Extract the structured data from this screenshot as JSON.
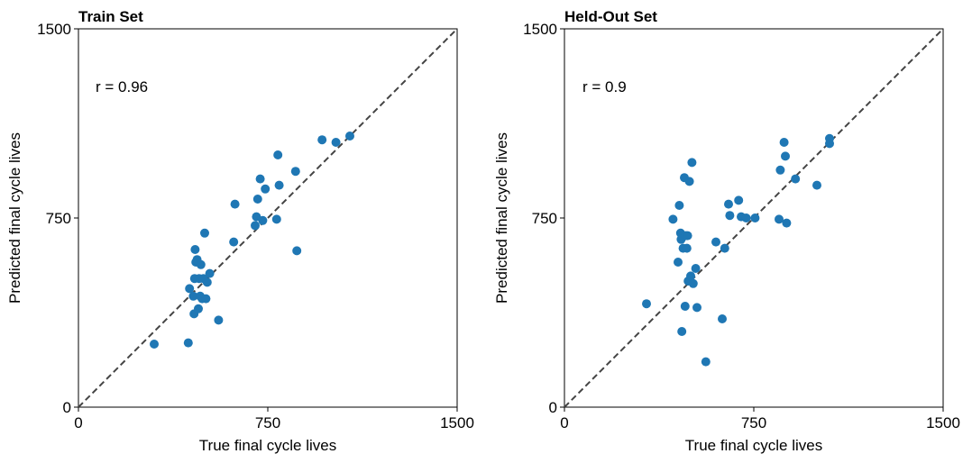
{
  "chart_data": [
    {
      "type": "scatter",
      "title": "Train Set",
      "xlabel": "True final cycle lives",
      "ylabel": "Predicted final cycle lives",
      "xlim": [
        0,
        1500
      ],
      "ylim": [
        0,
        1500
      ],
      "xticks": [
        "0",
        "750",
        "1500"
      ],
      "yticks": [
        "0",
        "750",
        "1500"
      ],
      "annotation": "r = 0.96",
      "reference_line": "y = x (dashed)",
      "grid": false,
      "marker_color": "#1f77b4",
      "x": [
        300,
        435,
        440,
        455,
        458,
        460,
        462,
        465,
        470,
        475,
        478,
        482,
        485,
        490,
        495,
        500,
        505,
        510,
        520,
        555,
        615,
        620,
        700,
        705,
        710,
        720,
        730,
        740,
        785,
        790,
        795,
        860,
        865,
        965,
        1020,
        1075
      ],
      "y": [
        250,
        255,
        470,
        440,
        370,
        510,
        625,
        575,
        585,
        390,
        510,
        440,
        565,
        430,
        510,
        690,
        430,
        495,
        530,
        345,
        655,
        805,
        720,
        755,
        825,
        905,
        740,
        865,
        745,
        1000,
        880,
        935,
        620,
        1060,
        1050,
        1075
      ]
    },
    {
      "type": "scatter",
      "title": "Held-Out Set",
      "xlabel": "True final cycle lives",
      "ylabel": "Predicted final cycle lives",
      "xlim": [
        0,
        1500
      ],
      "ylim": [
        0,
        1500
      ],
      "xticks": [
        "0",
        "750",
        "1500"
      ],
      "yticks": [
        "0",
        "750",
        "1500"
      ],
      "annotation": "r = 0.9",
      "reference_line": "y = x (dashed)",
      "grid": false,
      "marker_color": "#1f77b4",
      "x": [
        325,
        430,
        450,
        455,
        460,
        462,
        465,
        470,
        475,
        478,
        480,
        485,
        488,
        490,
        495,
        500,
        505,
        510,
        520,
        525,
        560,
        600,
        625,
        635,
        650,
        655,
        690,
        700,
        720,
        755,
        850,
        855,
        870,
        875,
        880,
        915,
        1000,
        1050,
        1050
      ],
      "y": [
        410,
        745,
        575,
        800,
        690,
        665,
        300,
        630,
        910,
        400,
        680,
        630,
        680,
        500,
        895,
        520,
        970,
        490,
        550,
        395,
        180,
        655,
        350,
        630,
        805,
        760,
        820,
        755,
        750,
        750,
        745,
        940,
        1050,
        995,
        730,
        905,
        880,
        1065,
        1045
      ]
    }
  ]
}
